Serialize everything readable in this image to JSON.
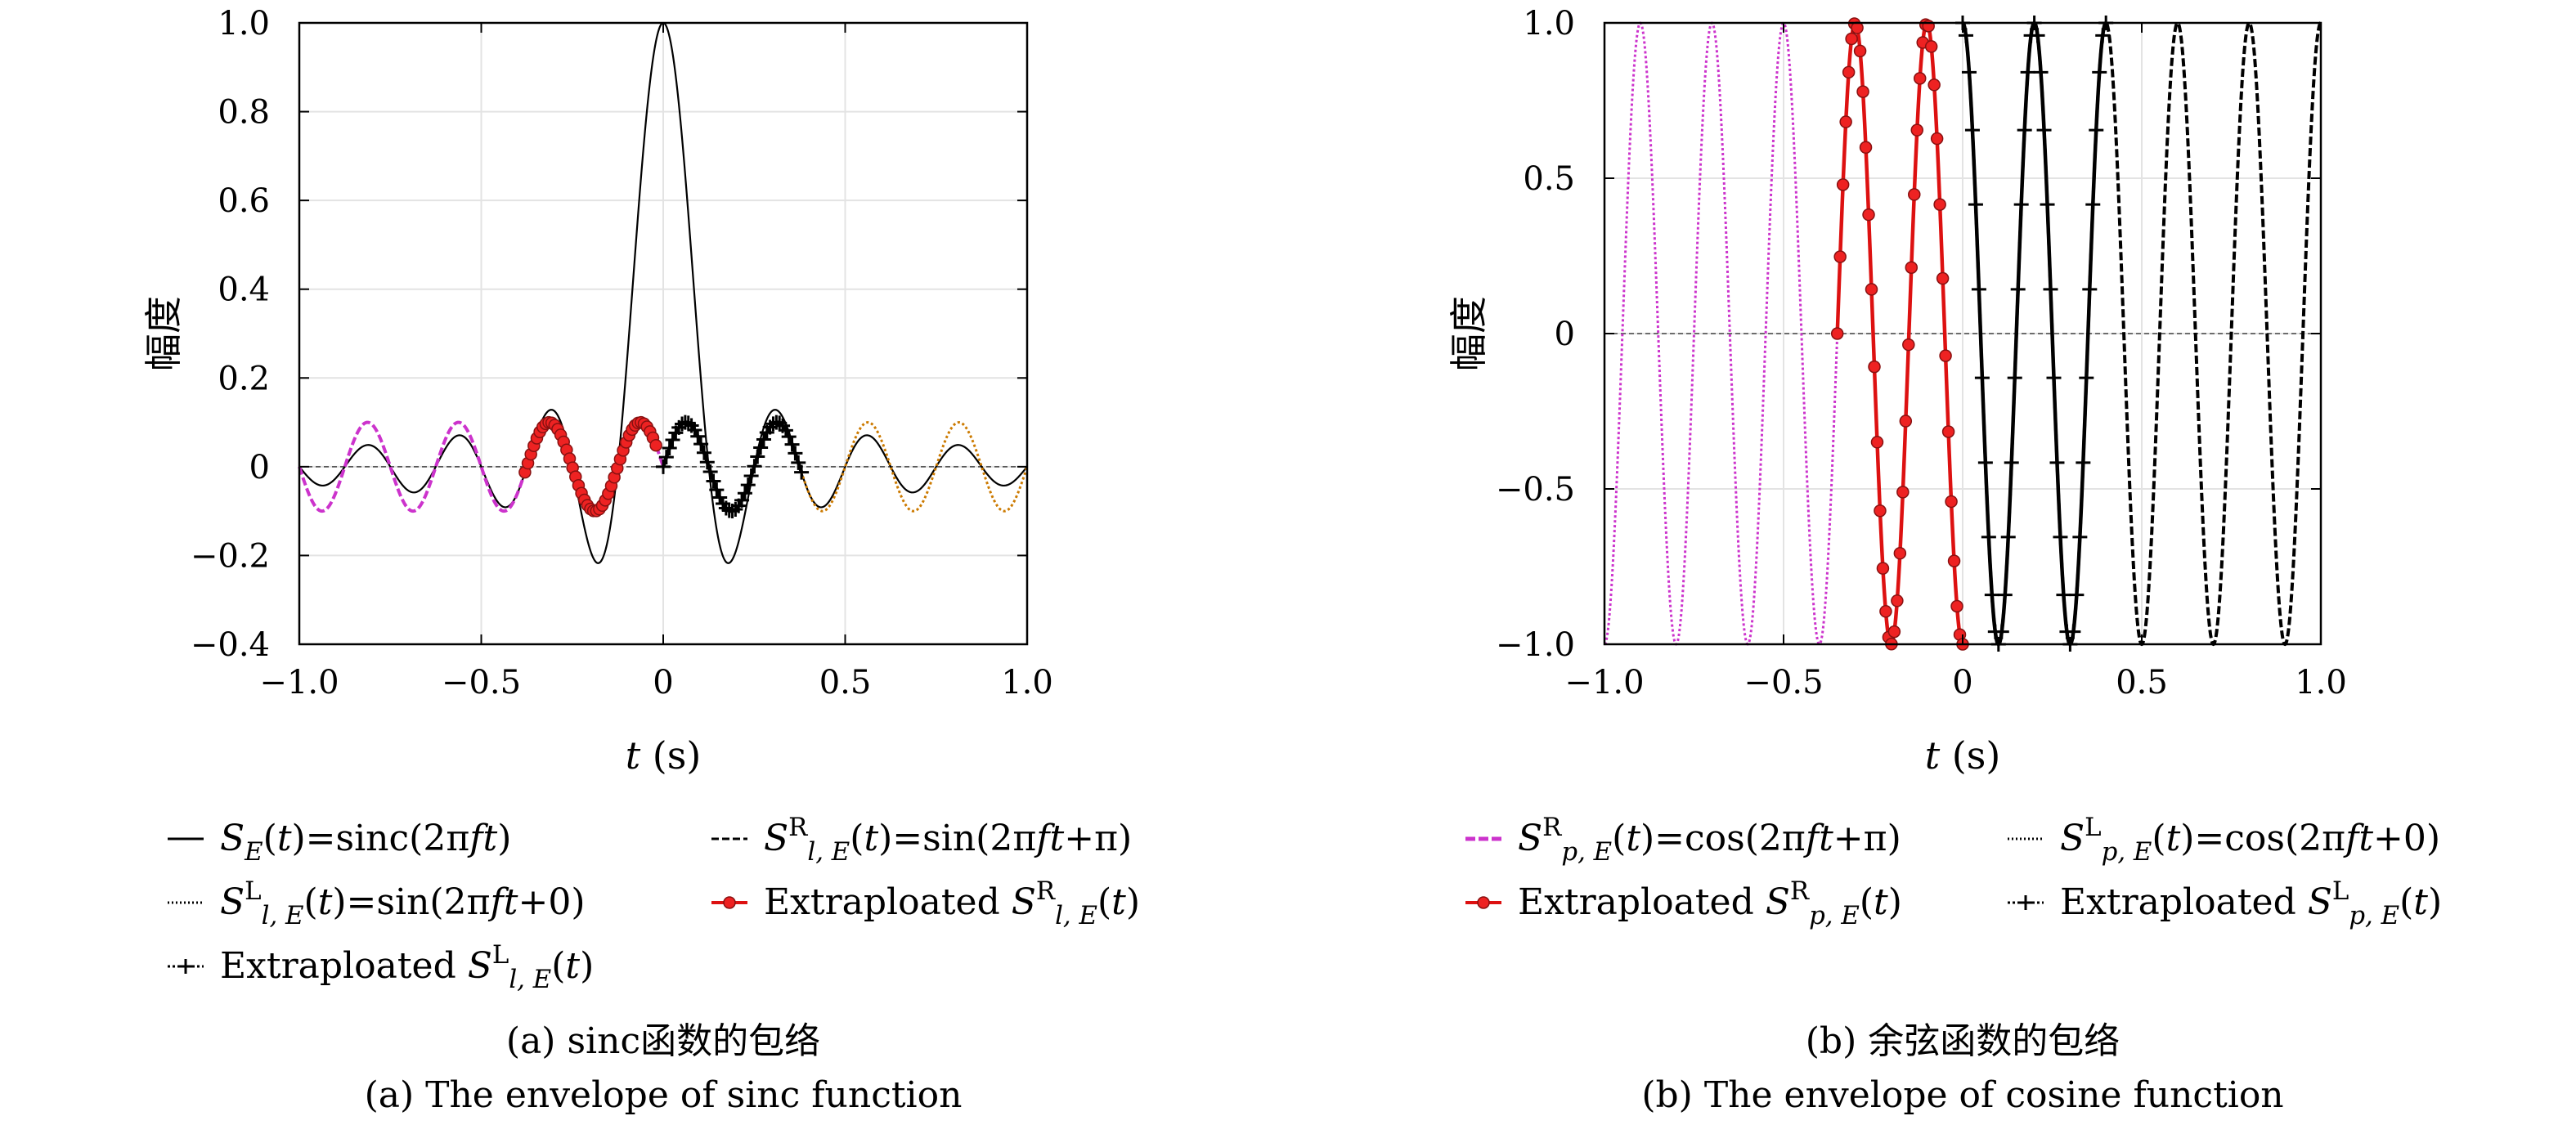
{
  "chart_data": [
    {
      "type": "line",
      "xlabel_var": "t",
      "xlabel_unit": "(s)",
      "ylabel": "幅度",
      "xlim": [
        -1.0,
        1.0
      ],
      "ylim": [
        -0.4,
        1.0
      ],
      "xticks": [
        -1.0,
        -0.5,
        0,
        0.5,
        1.0
      ],
      "xtick_labels": [
        "−1.0",
        "−0.5",
        "0",
        "0.5",
        "1.0"
      ],
      "yticks": [
        -0.4,
        -0.2,
        0,
        0.2,
        0.4,
        0.6,
        0.8,
        1.0
      ],
      "ytick_labels": [
        "−0.4",
        "−0.2",
        "0",
        "0.2",
        "0.4",
        "0.6",
        "0.8",
        "1.0"
      ],
      "grid": true,
      "frequency_hz": 4,
      "series": [
        {
          "name": "S_E(t)=sinc(2πft)",
          "kind": "sinc",
          "x_range": [
            -1.0,
            1.0
          ],
          "amplitude": 1.0,
          "color": "#000000"
        },
        {
          "name": "S^R_{l,E}(t)=sin(2πft+π)",
          "kind": "sin",
          "phase": 3.14159,
          "amplitude": 0.1,
          "x_range": [
            -1.0,
            0.0
          ],
          "color": "#cc33cc"
        },
        {
          "name": "S^L_{l,E}(t)=sin(2πft+0)",
          "kind": "sin",
          "phase": 0,
          "amplitude": 0.1,
          "x_range": [
            0.0,
            1.0
          ],
          "color": "#cc7a00"
        },
        {
          "name": "Extraploated S^R_{l,E}(t)",
          "kind": "sin",
          "phase": 3.14159,
          "amplitude": 0.1,
          "x_range": [
            -0.38,
            -0.02
          ],
          "color": "#dd1111"
        },
        {
          "name": "Extraploated S^L_{l,E}(t)",
          "kind": "sin",
          "phase": 0,
          "amplitude": 0.1,
          "x_range": [
            0.0,
            0.38
          ],
          "color": "#000000"
        }
      ],
      "legend": [
        {
          "text": "S_E(t)=sinc(2πft)",
          "style": "solid"
        },
        {
          "text": "S^R_{l,E}(t)=sin(2πft+π)",
          "style": "dashed"
        },
        {
          "text": "S^L_{l,E}(t)=sin(2πft+0)",
          "style": "dotted"
        },
        {
          "text": "Extraploated S^R_{l,E}(t)",
          "style": "red-circle"
        },
        {
          "text": "Extraploated S^L_{l,E}(t)",
          "style": "plus"
        }
      ],
      "caption_cn": "(a) sinc函数的包络",
      "caption_en": "(a) The envelope of sinc function"
    },
    {
      "type": "line",
      "xlabel_var": "t",
      "xlabel_unit": "(s)",
      "ylabel": "幅度",
      "xlim": [
        -1.0,
        1.0
      ],
      "ylim": [
        -1.0,
        1.0
      ],
      "xticks": [
        -1.0,
        -0.5,
        0,
        0.5,
        1.0
      ],
      "xtick_labels": [
        "−1.0",
        "−0.5",
        "0",
        "0.5",
        "1.0"
      ],
      "yticks": [
        -1.0,
        -0.5,
        0,
        0.5,
        1.0
      ],
      "ytick_labels": [
        "−1.0",
        "−0.5",
        "0",
        "0.5",
        "1.0"
      ],
      "grid": true,
      "frequency_hz": 5,
      "series": [
        {
          "name": "S^R_{p,E}(t)=cos(2πft+π)",
          "kind": "cos",
          "phase": 3.14159,
          "amplitude": 1.0,
          "x_range": [
            -1.0,
            0.0
          ],
          "color": "#cc33cc"
        },
        {
          "name": "S^L_{p,E}(t)=cos(2πft+0)",
          "kind": "cos",
          "phase": 0,
          "amplitude": 1.0,
          "x_range": [
            0.0,
            1.0
          ],
          "color": "#000000"
        },
        {
          "name": "Extraploated S^R_{p,E}(t)",
          "kind": "cos",
          "phase": 3.14159,
          "amplitude": 1.0,
          "x_range": [
            -0.35,
            0.0
          ],
          "color": "#dd1111"
        },
        {
          "name": "Extraploated S^L_{p,E}(t)",
          "kind": "cos",
          "phase": 0,
          "amplitude": 1.0,
          "x_range": [
            0.0,
            0.4
          ],
          "color": "#000000"
        }
      ],
      "legend": [
        {
          "text": "S^R_{p,E}(t)=cos(2πft+π)",
          "style": "magenta-dashed"
        },
        {
          "text": "S^L_{p,E}(t)=cos(2πft+0)",
          "style": "dotted"
        },
        {
          "text": "Extraploated S^R_{p,E}(t)",
          "style": "red-circle"
        },
        {
          "text": "Extraploated S^L_{p,E}(t)",
          "style": "plus"
        }
      ],
      "caption_cn": "(b) 余弦函数的包络",
      "caption_en": "(b) The envelope of cosine function"
    }
  ]
}
